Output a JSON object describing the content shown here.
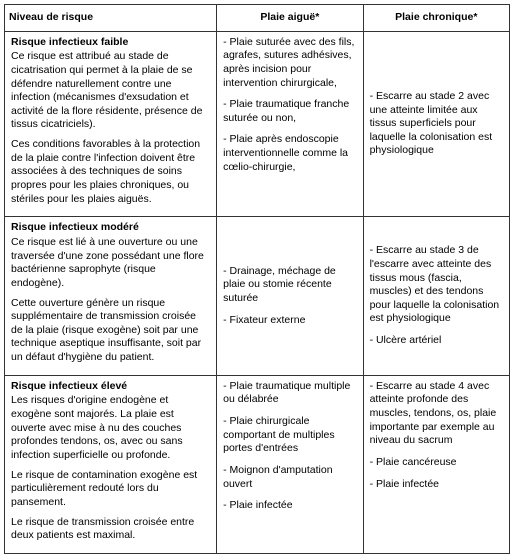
{
  "headers": {
    "col1": "Niveau de risque",
    "col2": "Plaie aiguë*",
    "col3": "Plaie chronique*"
  },
  "rows": [
    {
      "title": "Risque infectieux faible",
      "desc1": "Ce risque est  attribué au stade de cicatrisation qui permet à la plaie de se défendre naturellement contre une infection (mécanismes d'exsudation et activité de la flore résidente, présence de tissus cicatriciels).",
      "desc2": "Ces conditions favorables  à la protection de la plaie contre l'infection doivent être associées à des techniques de soins propres pour les plaies chroniques, ou stériles pour les plaies aiguës.",
      "aigue": [
        "- Plaie suturée avec des fils, agrafes, sutures adhésives, après incision pour intervention chirurgicale,",
        "- Plaie traumatique franche suturée ou non,",
        "- Plaie après endoscopie interventionnelle comme la cœlio-chirurgie,"
      ],
      "chron": [
        "- Escarre au stade 2 avec une atteinte limitée aux tissus superficiels pour laquelle la colonisation est physiologique"
      ],
      "chron_vcenter": true
    },
    {
      "title": "Risque infectieux modéré",
      "desc1": "Ce risque est lié à une ouverture ou une traversée d'une zone possédant une flore bactérienne saprophyte (risque endogène).",
      "desc2": "Cette ouverture génère un risque supplémentaire de transmission croisée de la plaie (risque exogène) soit par une technique aseptique insuffisante, soit par un défaut d'hygiène du patient.",
      "aigue": [
        "- Drainage, méchage de plaie ou stomie récente suturée",
        "- Fixateur externe"
      ],
      "aigue_vcenter": true,
      "chron": [
        "- Escarre au stade 3 de l'escarre avec atteinte des tissus mous (fascia, muscles) et des tendons pour laquelle la colonisation est physiologique",
        "- Ulcère artériel"
      ],
      "chron_vcenter": true
    },
    {
      "title": "Risque infectieux élevé",
      "desc1": "Les risques d'origine endogène et exogène sont majorés. La plaie est ouverte avec mise à nu des couches profondes tendons, os, avec ou sans infection superficielle ou profonde.",
      "desc2": "Le risque de contamination exogène est particulièrement redouté lors du pansement.",
      "desc3": "Le risque de transmission croisée entre deux patients est maximal.",
      "aigue": [
        "- Plaie traumatique multiple ou délabrée",
        "- Plaie chirurgicale comportant de multiples portes d'entrées",
        "- Moignon d'amputation ouvert",
        "- Plaie infectée"
      ],
      "chron": [
        "- Escarre au stade 4 avec atteinte profonde des muscles, tendons, os, plaie importante par exemple au niveau du sacrum",
        "- Plaie cancéreuse",
        "- Plaie infectée"
      ]
    }
  ]
}
